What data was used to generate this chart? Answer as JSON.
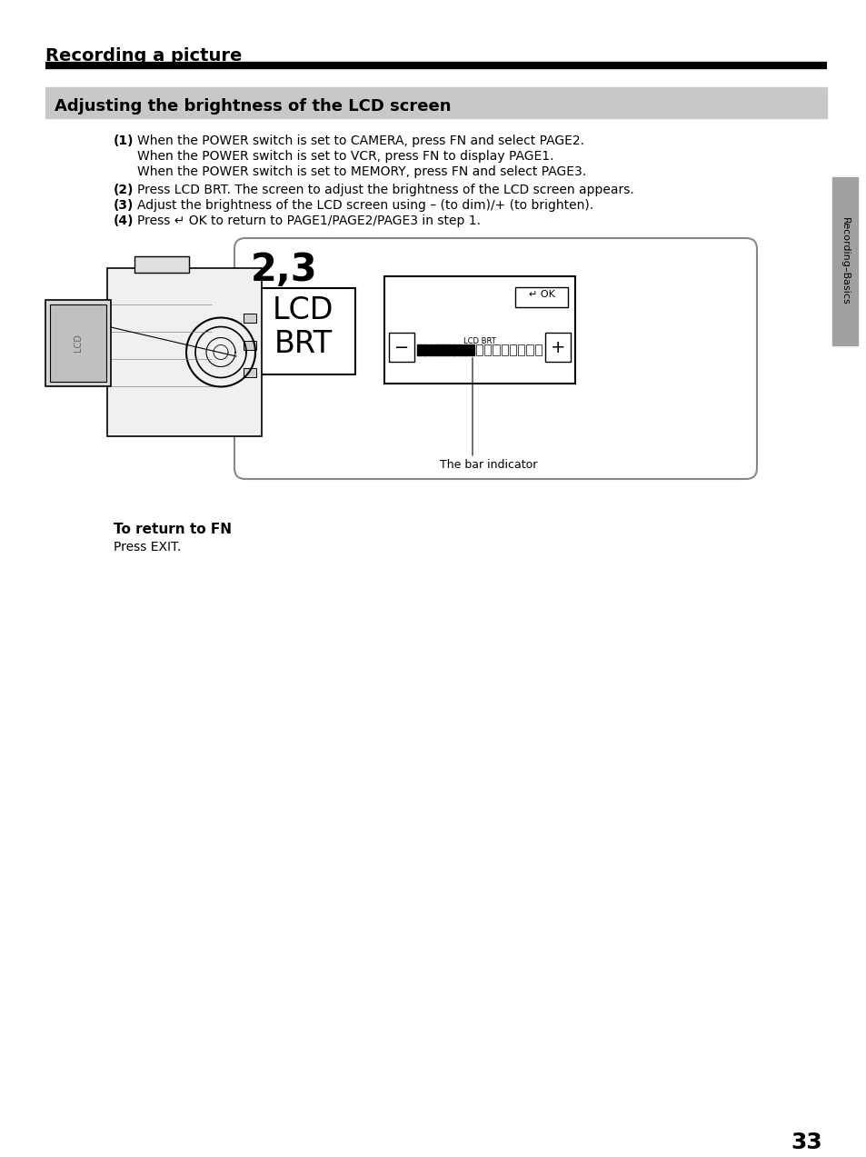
{
  "title": "Recording a picture",
  "section_title": "Adjusting the brightness of the LCD screen",
  "section_bg": "#c8c8c8",
  "step1_bold": "(1)",
  "step1_text1": "When the POWER switch is set to CAMERA, press FN and select PAGE2.",
  "step1_text2": "When the POWER switch is set to VCR, press FN to display PAGE1.",
  "step1_text3": "When the POWER switch is set to MEMORY, press FN and select PAGE3.",
  "step2_bold": "(2)",
  "step2_text": "Press LCD BRT. The screen to adjust the brightness of the LCD screen appears.",
  "step3_bold": "(3)",
  "step3_text": "Adjust the brightness of the LCD screen using – (to dim)/+ (to brighten).",
  "step4_bold": "(4)",
  "step4_text": "Press ↵ OK to return to PAGE1/PAGE2/PAGE3 in step 1.",
  "diagram_step": "2,3",
  "lcd_label": "LCD\nBRT",
  "bar_label": "LCD BRT",
  "bar_indicator_text": "The bar indicator",
  "ok_label": "↵ OK",
  "return_fn_bold": "To return to FN",
  "return_fn_text": "Press EXIT.",
  "page_number": "33",
  "sidebar_text": "Recording–Basics",
  "bg_color": "#ffffff",
  "text_color": "#000000",
  "sidebar_bg": "#a0a0a0"
}
